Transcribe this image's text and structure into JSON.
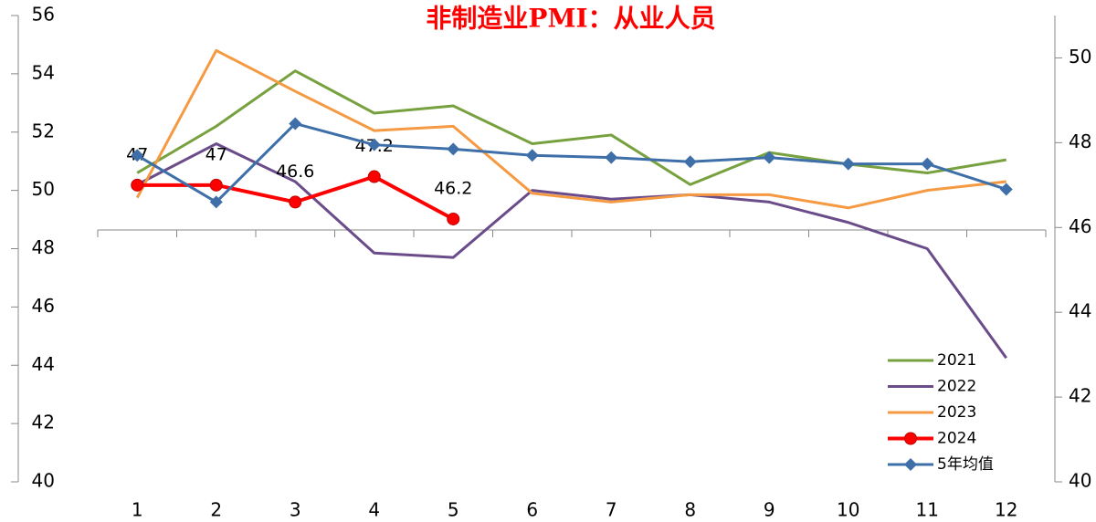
{
  "chart_data": {
    "type": "line",
    "title": "非制造业PMI：从业人员",
    "categories": [
      "1",
      "2",
      "3",
      "4",
      "5",
      "6",
      "7",
      "8",
      "9",
      "10",
      "11",
      "12"
    ],
    "ylim": [
      40,
      56
    ],
    "yticks": [
      40,
      42,
      44,
      46,
      48,
      50,
      52,
      54,
      56
    ],
    "y2lim": [
      40,
      51
    ],
    "y2ticks": [
      40,
      42,
      44,
      46,
      48,
      50
    ],
    "legend": "lower right",
    "series": [
      {
        "name": "2021",
        "color": "#77a13f",
        "marker": "none",
        "values": [
          50.6,
          52.2,
          54.1,
          52.65,
          52.9,
          51.6,
          51.9,
          50.2,
          51.3,
          50.9,
          50.6,
          51.05
        ]
      },
      {
        "name": "2022",
        "color": "#6b4c8a",
        "marker": "none",
        "values": [
          50.2,
          51.6,
          50.3,
          47.85,
          47.7,
          50.0,
          49.7,
          49.85,
          49.6,
          48.9,
          48.0,
          44.25
        ]
      },
      {
        "name": "2023",
        "color": "#f59a42",
        "marker": "none",
        "values": [
          49.75,
          54.8,
          53.4,
          52.05,
          52.2,
          49.9,
          49.6,
          49.85,
          49.85,
          49.4,
          50.0,
          50.3
        ]
      },
      {
        "name": "2024",
        "color": "#ff0000",
        "marker": "circle",
        "axis": "y2",
        "data_labels": true,
        "values": [
          47,
          47,
          46.6,
          47.2,
          46.2,
          null,
          null,
          null,
          null,
          null,
          null,
          null
        ]
      },
      {
        "name": "5年均值",
        "color": "#3e6fa8",
        "marker": "diamond",
        "axis": "y2",
        "values": [
          47.7,
          46.6,
          48.45,
          47.95,
          47.85,
          47.7,
          47.65,
          47.55,
          47.65,
          47.5,
          47.5,
          46.9
        ]
      }
    ]
  }
}
